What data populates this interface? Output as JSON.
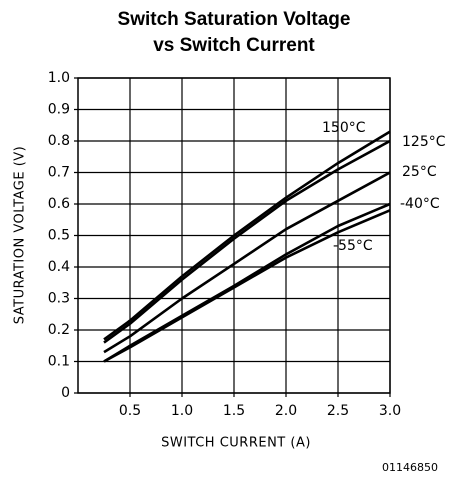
{
  "chart_data": {
    "type": "line",
    "title": [
      "Switch Saturation Voltage",
      "vs Switch Current"
    ],
    "xlabel": "SWITCH CURRENT (A)",
    "ylabel": "SATURATION VOLTAGE (V)",
    "footnote": "01146850",
    "x": [
      0.25,
      0.5,
      1.0,
      1.5,
      2.0,
      2.5,
      3.0
    ],
    "series": [
      {
        "name": "150°C",
        "color": "#000000",
        "values": [
          0.17,
          0.23,
          0.37,
          0.5,
          0.62,
          0.73,
          0.83
        ]
      },
      {
        "name": "125°C",
        "color": "#000000",
        "values": [
          0.16,
          0.22,
          0.36,
          0.49,
          0.61,
          0.71,
          0.8
        ]
      },
      {
        "name": "25°C",
        "color": "#000000",
        "values": [
          0.13,
          0.18,
          0.3,
          0.41,
          0.52,
          0.61,
          0.7
        ]
      },
      {
        "name": "-40°C",
        "color": "#000000",
        "values": [
          0.1,
          0.15,
          0.245,
          0.34,
          0.44,
          0.53,
          0.6
        ]
      },
      {
        "name": "-55°C",
        "color": "#000000",
        "values": [
          0.1,
          0.145,
          0.24,
          0.335,
          0.43,
          0.51,
          0.58
        ]
      }
    ],
    "xlim": [
      0,
      3
    ],
    "ylim": [
      0,
      1
    ],
    "xticks": [
      0.5,
      {
        "value": 1,
        "label": "1.0"
      },
      1.5,
      {
        "value": 2,
        "label": "2.0"
      },
      2.5,
      {
        "value": 3,
        "label": "3.0"
      }
    ],
    "yticks": [
      0,
      0.1,
      0.2,
      0.3,
      0.4,
      0.5,
      0.6,
      0.7,
      0.8,
      0.9,
      {
        "value": 1,
        "label": "1.0"
      }
    ],
    "grid": true
  }
}
